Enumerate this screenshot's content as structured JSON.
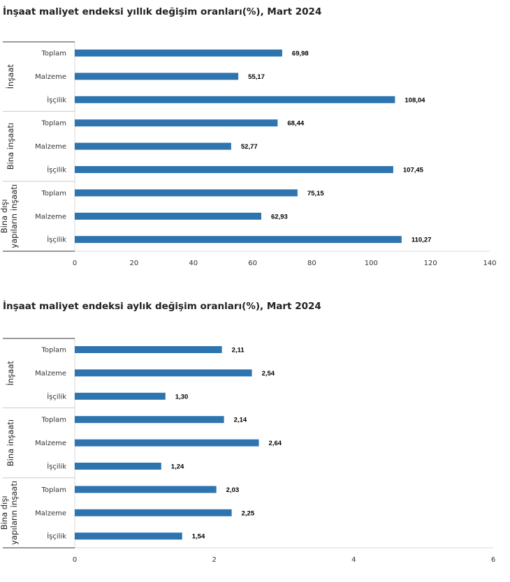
{
  "colors": {
    "bar": "#2e75b0",
    "axis": "#d9d9d9",
    "group_line": "#333333"
  },
  "chart_data": [
    {
      "type": "bar",
      "orientation": "horizontal",
      "title": "İnşaat maliyet endeksi yıllık değişim oranları(%), Mart 2024",
      "groups": [
        {
          "name": "İnşaat",
          "categories": [
            "Toplam",
            "Malzeme",
            "İşçilik"
          ],
          "values": [
            69.98,
            55.17,
            108.04
          ],
          "labels": [
            "69,98",
            "55,17",
            "108,04"
          ]
        },
        {
          "name": "Bina inşaatı",
          "categories": [
            "Toplam",
            "Malzeme",
            "İşçilik"
          ],
          "values": [
            68.44,
            52.77,
            107.45
          ],
          "labels": [
            "68,44",
            "52,77",
            "107,45"
          ]
        },
        {
          "name": [
            "Bina dışı",
            "yapıların inşaatı"
          ],
          "categories": [
            "Toplam",
            "Malzeme",
            "İşçilik"
          ],
          "values": [
            75.15,
            62.93,
            110.27
          ],
          "labels": [
            "75,15",
            "62,93",
            "110,27"
          ]
        }
      ],
      "xlim": [
        0,
        140
      ],
      "xticks": [
        "0",
        "20",
        "40",
        "60",
        "80",
        "100",
        "120",
        "140"
      ]
    },
    {
      "type": "bar",
      "orientation": "horizontal",
      "title": "İnşaat maliyet endeksi aylık değişim oranları(%), Mart 2024",
      "groups": [
        {
          "name": "İnşaat",
          "categories": [
            "Toplam",
            "Malzeme",
            "İşçilik"
          ],
          "values": [
            2.11,
            2.54,
            1.3
          ],
          "labels": [
            "2,11",
            "2,54",
            "1,30"
          ]
        },
        {
          "name": "Bina inşaatı",
          "categories": [
            "Toplam",
            "Malzeme",
            "İşçilik"
          ],
          "values": [
            2.14,
            2.64,
            1.24
          ],
          "labels": [
            "2,14",
            "2,64",
            "1,24"
          ]
        },
        {
          "name": [
            "Bina dışı",
            "yapıların inşaatı"
          ],
          "categories": [
            "Toplam",
            "Malzeme",
            "İşçilik"
          ],
          "values": [
            2.03,
            2.25,
            1.54
          ],
          "labels": [
            "2,03",
            "2,25",
            "1,54"
          ]
        }
      ],
      "xlim": [
        0,
        6
      ],
      "xticks": [
        "0",
        "2",
        "4",
        "6"
      ]
    }
  ]
}
